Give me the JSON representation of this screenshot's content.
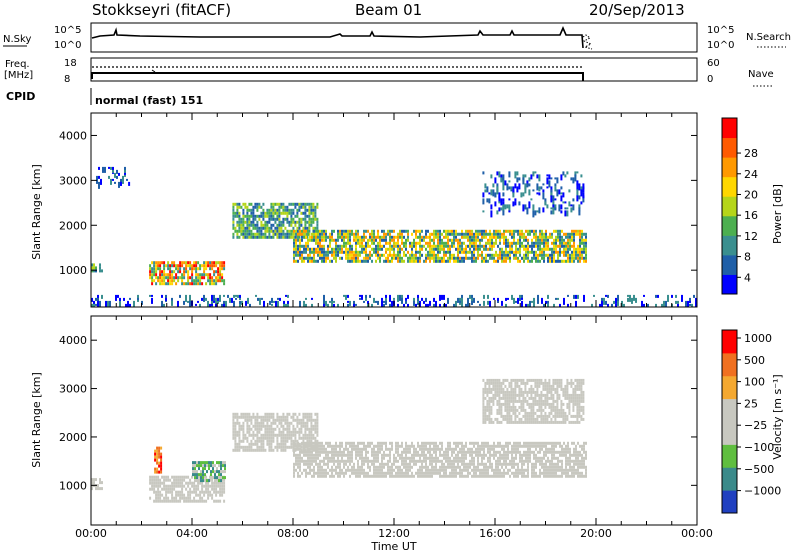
{
  "header": {
    "station": "Stokkseyri (fitACF)",
    "beam": "Beam 01",
    "date": "20/Sep/2013"
  },
  "params": {
    "nsky_label": "N.Sky",
    "nsky_tick_hi": "10^5",
    "nsky_tick_lo": "10^0",
    "nsearch_label": "N.Search",
    "freq_label_1": "Freq.",
    "freq_label_2": "[MHz]",
    "freq_tick_hi": "18",
    "freq_tick_lo": "8",
    "nave_tick_hi": "60",
    "nave_tick_lo": "0",
    "nave_label": "Nave",
    "cpid_label": "CPID",
    "cpid_value": "normal (fast) 151"
  },
  "colors": {
    "power": [
      "#0000ff",
      "#1f5fa8",
      "#3a8f8f",
      "#4caf50",
      "#b5d51a",
      "#ffd700",
      "#ff9900",
      "#ff5a00",
      "#ff0000"
    ],
    "velocity": [
      "#2040c0",
      "#3a8a8a",
      "#5fbe3f",
      "#c8c8c0",
      "#c8c8c0",
      "#f4a830",
      "#f07020",
      "#ff0000"
    ]
  },
  "chart_data": [
    {
      "type": "heatmap",
      "name": "Power",
      "xlabel": "Time UT",
      "ylabel": "Slant Range [km]",
      "x_ticks": [
        "00:00",
        "04:00",
        "08:00",
        "12:00",
        "16:00",
        "20:00",
        "00:00"
      ],
      "x_range_hours": [
        0,
        24
      ],
      "y_range_km": [
        180,
        4500
      ],
      "y_ticks": [
        1000,
        2000,
        3000,
        4000
      ],
      "colorbar": {
        "label": "Power [dB]",
        "ticks": [
          4,
          8,
          12,
          16,
          20,
          24,
          28
        ]
      },
      "echo_regions": [
        {
          "t_start": 0.0,
          "t_end": 0.4,
          "range_km": [
            950,
            1150
          ],
          "value": "medium"
        },
        {
          "t_start": 2.3,
          "t_end": 5.3,
          "range_km": [
            700,
            1200
          ],
          "value": "high"
        },
        {
          "t_start": 5.6,
          "t_end": 9.0,
          "range_km": [
            1700,
            2500
          ],
          "value": "medium"
        },
        {
          "t_start": 8.0,
          "t_end": 19.6,
          "range_km": [
            1200,
            1900
          ],
          "value": "medium-high"
        },
        {
          "t_start": 0.2,
          "t_end": 1.5,
          "range_km": [
            2900,
            3300
          ],
          "value": "low"
        },
        {
          "t_start": 15.5,
          "t_end": 19.5,
          "range_km": [
            2300,
            3200
          ],
          "value": "low"
        },
        {
          "t_start": 0.0,
          "t_end": 24.0,
          "range_km": [
            180,
            450
          ],
          "value": "low"
        }
      ]
    },
    {
      "type": "heatmap",
      "name": "Velocity",
      "xlabel": "Time UT",
      "ylabel": "Slant Range [km]",
      "x_ticks": [
        "00:00",
        "04:00",
        "08:00",
        "12:00",
        "16:00",
        "20:00",
        "00:00"
      ],
      "x_range_hours": [
        0,
        24
      ],
      "y_range_km": [
        180,
        4500
      ],
      "y_ticks": [
        1000,
        2000,
        3000,
        4000
      ],
      "colorbar": {
        "label": "Velocity [m s⁻¹]",
        "ticks": [
          1000,
          500,
          100,
          25,
          -25,
          -100,
          -500,
          -1000
        ]
      },
      "echo_regions": [
        {
          "t_start": 0.0,
          "t_end": 0.4,
          "range_km": [
            950,
            1150
          ],
          "value": "ground scatter"
        },
        {
          "t_start": 2.3,
          "t_end": 5.3,
          "range_km": [
            700,
            1200
          ],
          "value": "ground scatter"
        },
        {
          "t_start": 4.0,
          "t_end": 5.3,
          "range_km": [
            1100,
            1500
          ],
          "value": "positive"
        },
        {
          "t_start": 2.5,
          "t_end": 2.8,
          "range_km": [
            1300,
            1800
          ],
          "value": "negative"
        },
        {
          "t_start": 5.6,
          "t_end": 9.0,
          "range_km": [
            1700,
            2500
          ],
          "value": "ground scatter"
        },
        {
          "t_start": 8.0,
          "t_end": 19.6,
          "range_km": [
            1200,
            1900
          ],
          "value": "ground scatter"
        },
        {
          "t_start": 15.5,
          "t_end": 19.5,
          "range_km": [
            2300,
            3200
          ],
          "value": "ground scatter"
        }
      ]
    }
  ]
}
